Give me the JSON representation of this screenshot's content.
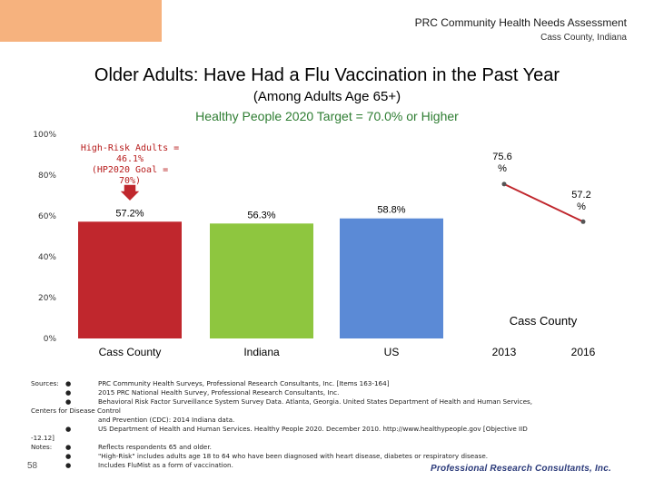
{
  "header": {
    "title": "PRC Community Health Needs Assessment",
    "subtitle": "Cass County, Indiana"
  },
  "slide": {
    "title": "Older Adults: Have Had a Flu Vaccination in the Past Year",
    "subtitle": "(Among Adults Age 65+)",
    "target_text": "Healthy People 2020 Target = 70.0% or Higher",
    "page_number": "58",
    "footer_logo": "Professional Research Consultants, Inc."
  },
  "colors": {
    "bar_cass": "#c0272d",
    "bar_indiana": "#8ec63f",
    "bar_us": "#5b8ad6",
    "trend_line": "#c0272d",
    "target_text": "#2e7d32",
    "annotation": "#b71c1c",
    "logo_box": "#f6b27e"
  },
  "chart_data": {
    "type": "bar",
    "categories": [
      "Cass County",
      "Indiana",
      "US"
    ],
    "values": [
      57.2,
      56.3,
      58.8
    ],
    "value_labels": [
      "57.2%",
      "56.3%",
      "58.8%"
    ],
    "ylim": [
      0,
      100
    ],
    "y_ticks": [
      "0%",
      "20%",
      "40%",
      "60%",
      "80%",
      "100%"
    ],
    "annotation": {
      "lines": [
        "High-Risk Adults =",
        "46.1%",
        "(HP2020 Goal =",
        "70%)"
      ]
    },
    "trend": {
      "label": "Cass County",
      "x": [
        "2013",
        "2016"
      ],
      "values": [
        75.6,
        57.2
      ],
      "value_labels": [
        [
          "75.6",
          "%"
        ],
        [
          "57.2",
          "%"
        ]
      ]
    }
  },
  "sources": {
    "sources_label": "Sources:",
    "notes_label": "Notes:",
    "bullet": "●",
    "items": [
      "PRC Community Health Surveys, Professional Research Consultants, Inc. [Items 163-164]",
      "2015 PRC National Health Survey, Professional Research Consultants, Inc.",
      "Behavioral Risk Factor Surveillance System Survey Data. Atlanta, Georgia. United States Department of Health and Human Services,",
      "Centers for Disease Control",
      "and Prevention (CDC): 2014 Indiana data.",
      "US Department of Health and Human Services. Healthy People 2020. December 2010. http://www.healthypeople.gov [Objective IID",
      "-12.12]"
    ],
    "notes": [
      "Reflects respondents 65 and older.",
      "\"High-Risk\" includes adults age 18 to 64 who have been diagnosed with heart disease, diabetes or respiratory disease.",
      "Includes FluMist as a form of vaccination."
    ]
  }
}
